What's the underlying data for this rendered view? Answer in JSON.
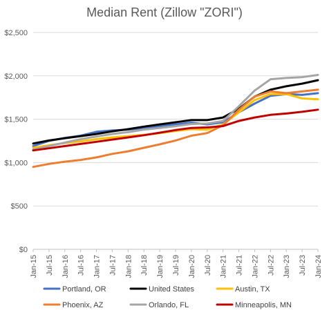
{
  "chart_data": {
    "type": "line",
    "title": "Median Rent (Zillow \"ZORI\")",
    "xlabel": "",
    "ylabel": "",
    "ylim": [
      0,
      2500
    ],
    "yticks": [
      0,
      500,
      1000,
      1500,
      2000,
      2500
    ],
    "ytick_labels": [
      "$0",
      "$500",
      "$1,000",
      "$1,500",
      "$2,000",
      "$2,500"
    ],
    "xlim": [
      "2015-01",
      "2024-01"
    ],
    "xtick_labels": [
      "Jan-15",
      "Jul-15",
      "Jan-16",
      "Jul-16",
      "Jan-17",
      "Jul-17",
      "Jan-18",
      "Jul-18",
      "Jan-19",
      "Jul-19",
      "Jan-20",
      "Jul-20",
      "Jan-21",
      "Jul-21",
      "Jan-22",
      "Jul-22",
      "Jan-23",
      "Jul-23",
      "Jan-24"
    ],
    "grid": true,
    "legend_position": "bottom",
    "series": [
      {
        "name": "Portland, OR",
        "color": "#4472C4",
        "points": [
          [
            "Jan-15",
            1190
          ],
          [
            "Jul-15",
            1250
          ],
          [
            "Jan-16",
            1285
          ],
          [
            "Jul-16",
            1310
          ],
          [
            "Jan-17",
            1355
          ],
          [
            "Jul-17",
            1370
          ],
          [
            "Jan-18",
            1380
          ],
          [
            "Jul-18",
            1400
          ],
          [
            "Jan-19",
            1420
          ],
          [
            "Jul-19",
            1440
          ],
          [
            "Jan-20",
            1460
          ],
          [
            "Jul-20",
            1440
          ],
          [
            "Jan-21",
            1465
          ],
          [
            "Jul-21",
            1580
          ],
          [
            "Jan-22",
            1680
          ],
          [
            "Jul-22",
            1770
          ],
          [
            "Jan-23",
            1790
          ],
          [
            "Jul-23",
            1780
          ],
          [
            "Jan-24",
            1800
          ]
        ]
      },
      {
        "name": "United States",
        "color": "#000000",
        "points": [
          [
            "Jan-15",
            1220
          ],
          [
            "Jul-15",
            1255
          ],
          [
            "Jan-16",
            1280
          ],
          [
            "Jul-16",
            1305
          ],
          [
            "Jan-17",
            1330
          ],
          [
            "Jul-17",
            1360
          ],
          [
            "Jan-18",
            1385
          ],
          [
            "Jul-18",
            1415
          ],
          [
            "Jan-19",
            1440
          ],
          [
            "Jul-19",
            1465
          ],
          [
            "Jan-20",
            1490
          ],
          [
            "Jul-20",
            1490
          ],
          [
            "Jan-21",
            1520
          ],
          [
            "Jul-21",
            1620
          ],
          [
            "Jan-22",
            1760
          ],
          [
            "Jul-22",
            1840
          ],
          [
            "Jan-23",
            1880
          ],
          [
            "Jul-23",
            1910
          ],
          [
            "Jan-24",
            1950
          ]
        ]
      },
      {
        "name": "Austin, TX",
        "color": "#FFC000",
        "points": [
          [
            "Jan-15",
            1170
          ],
          [
            "Jul-15",
            1200
          ],
          [
            "Jan-16",
            1225
          ],
          [
            "Jul-16",
            1245
          ],
          [
            "Jan-17",
            1270
          ],
          [
            "Jul-17",
            1290
          ],
          [
            "Jan-18",
            1305
          ],
          [
            "Jul-18",
            1320
          ],
          [
            "Jan-19",
            1340
          ],
          [
            "Jul-19",
            1365
          ],
          [
            "Jan-20",
            1385
          ],
          [
            "Jul-20",
            1380
          ],
          [
            "Jan-21",
            1440
          ],
          [
            "Jul-21",
            1580
          ],
          [
            "Jan-22",
            1720
          ],
          [
            "Jul-22",
            1790
          ],
          [
            "Jan-23",
            1790
          ],
          [
            "Jul-23",
            1740
          ],
          [
            "Jan-24",
            1730
          ]
        ]
      },
      {
        "name": "Phoenix, AZ",
        "color": "#ED7D31",
        "points": [
          [
            "Jan-15",
            950
          ],
          [
            "Jul-15",
            985
          ],
          [
            "Jan-16",
            1010
          ],
          [
            "Jul-16",
            1030
          ],
          [
            "Jan-17",
            1060
          ],
          [
            "Jul-17",
            1100
          ],
          [
            "Jan-18",
            1130
          ],
          [
            "Jul-18",
            1170
          ],
          [
            "Jan-19",
            1210
          ],
          [
            "Jul-19",
            1255
          ],
          [
            "Jan-20",
            1310
          ],
          [
            "Jul-20",
            1340
          ],
          [
            "Jan-21",
            1430
          ],
          [
            "Jul-21",
            1610
          ],
          [
            "Jan-22",
            1760
          ],
          [
            "Jul-22",
            1820
          ],
          [
            "Jan-23",
            1800
          ],
          [
            "Jul-23",
            1820
          ],
          [
            "Jan-24",
            1840
          ]
        ]
      },
      {
        "name": "Orlando, FL",
        "color": "#A5A5A5",
        "points": [
          [
            "Jan-15",
            1150
          ],
          [
            "Jul-15",
            1190
          ],
          [
            "Jan-16",
            1230
          ],
          [
            "Jul-16",
            1270
          ],
          [
            "Jan-17",
            1300
          ],
          [
            "Jul-17",
            1330
          ],
          [
            "Jan-18",
            1350
          ],
          [
            "Jul-18",
            1380
          ],
          [
            "Jan-19",
            1400
          ],
          [
            "Jul-19",
            1420
          ],
          [
            "Jan-20",
            1445
          ],
          [
            "Jul-20",
            1450
          ],
          [
            "Jan-21",
            1480
          ],
          [
            "Jul-21",
            1650
          ],
          [
            "Jan-22",
            1830
          ],
          [
            "Jul-22",
            1960
          ],
          [
            "Jan-23",
            1975
          ],
          [
            "Jul-23",
            1985
          ],
          [
            "Jan-24",
            2010
          ]
        ]
      },
      {
        "name": "Minneapolis, MN",
        "color": "#C00000",
        "points": [
          [
            "Jan-15",
            1140
          ],
          [
            "Jul-15",
            1165
          ],
          [
            "Jan-16",
            1190
          ],
          [
            "Jul-16",
            1215
          ],
          [
            "Jan-17",
            1240
          ],
          [
            "Jul-17",
            1265
          ],
          [
            "Jan-18",
            1290
          ],
          [
            "Jul-18",
            1315
          ],
          [
            "Jan-19",
            1345
          ],
          [
            "Jul-19",
            1375
          ],
          [
            "Jan-20",
            1400
          ],
          [
            "Jul-20",
            1405
          ],
          [
            "Jan-21",
            1420
          ],
          [
            "Jul-21",
            1480
          ],
          [
            "Jan-22",
            1520
          ],
          [
            "Jul-22",
            1550
          ],
          [
            "Jan-23",
            1565
          ],
          [
            "Jul-23",
            1585
          ],
          [
            "Jan-24",
            1610
          ]
        ]
      }
    ]
  }
}
